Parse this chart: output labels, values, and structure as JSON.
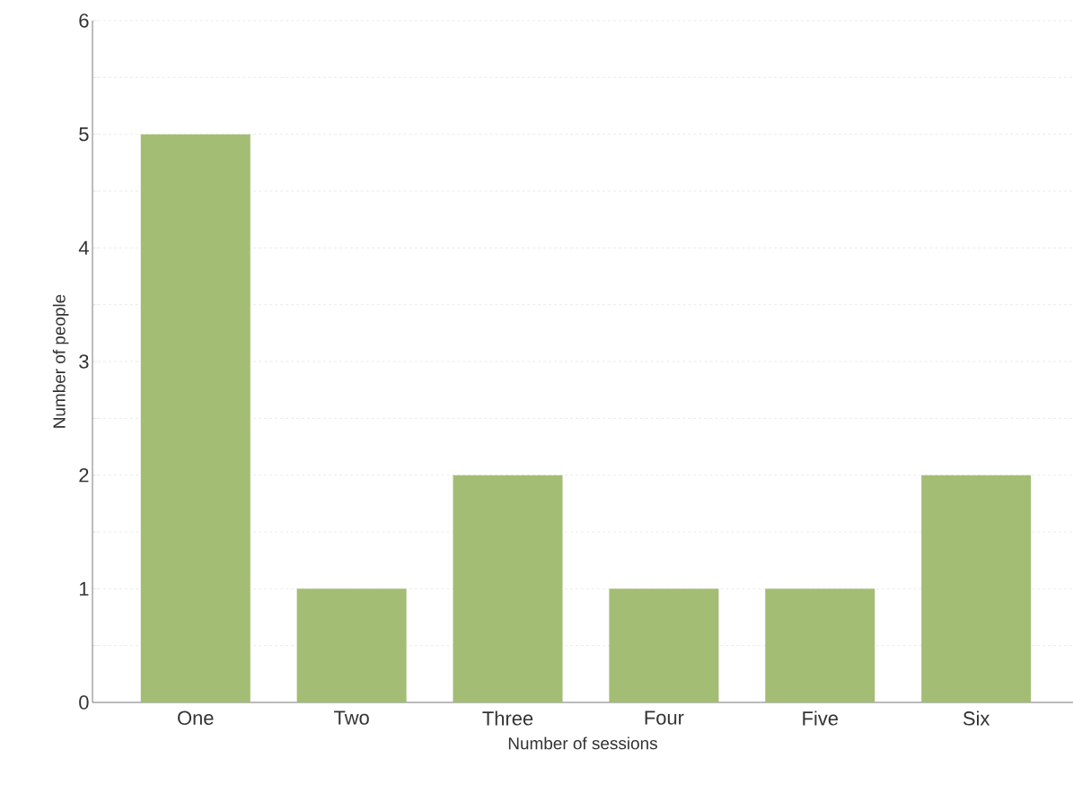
{
  "chart_data": {
    "type": "bar",
    "xlabel": "Number of sessions",
    "ylabel": "Number of people",
    "categories": [
      "One",
      "Two",
      "Three",
      "Four",
      "Five",
      "Six"
    ],
    "values": [
      5,
      1,
      2,
      1,
      1,
      2
    ],
    "color": "#a3bd74",
    "ylim": [
      0,
      6
    ],
    "yticks": [
      0,
      {
        "value": 0.5,
        "label": null
      },
      1,
      {
        "value": 1.5,
        "label": null
      },
      2,
      {
        "value": 2.5,
        "label": null
      },
      3,
      {
        "value": 3.5,
        "label": null
      },
      4,
      {
        "value": 4.5,
        "label": null
      },
      5,
      {
        "value": 5.5,
        "label": null
      },
      6
    ],
    "grid": "y"
  }
}
